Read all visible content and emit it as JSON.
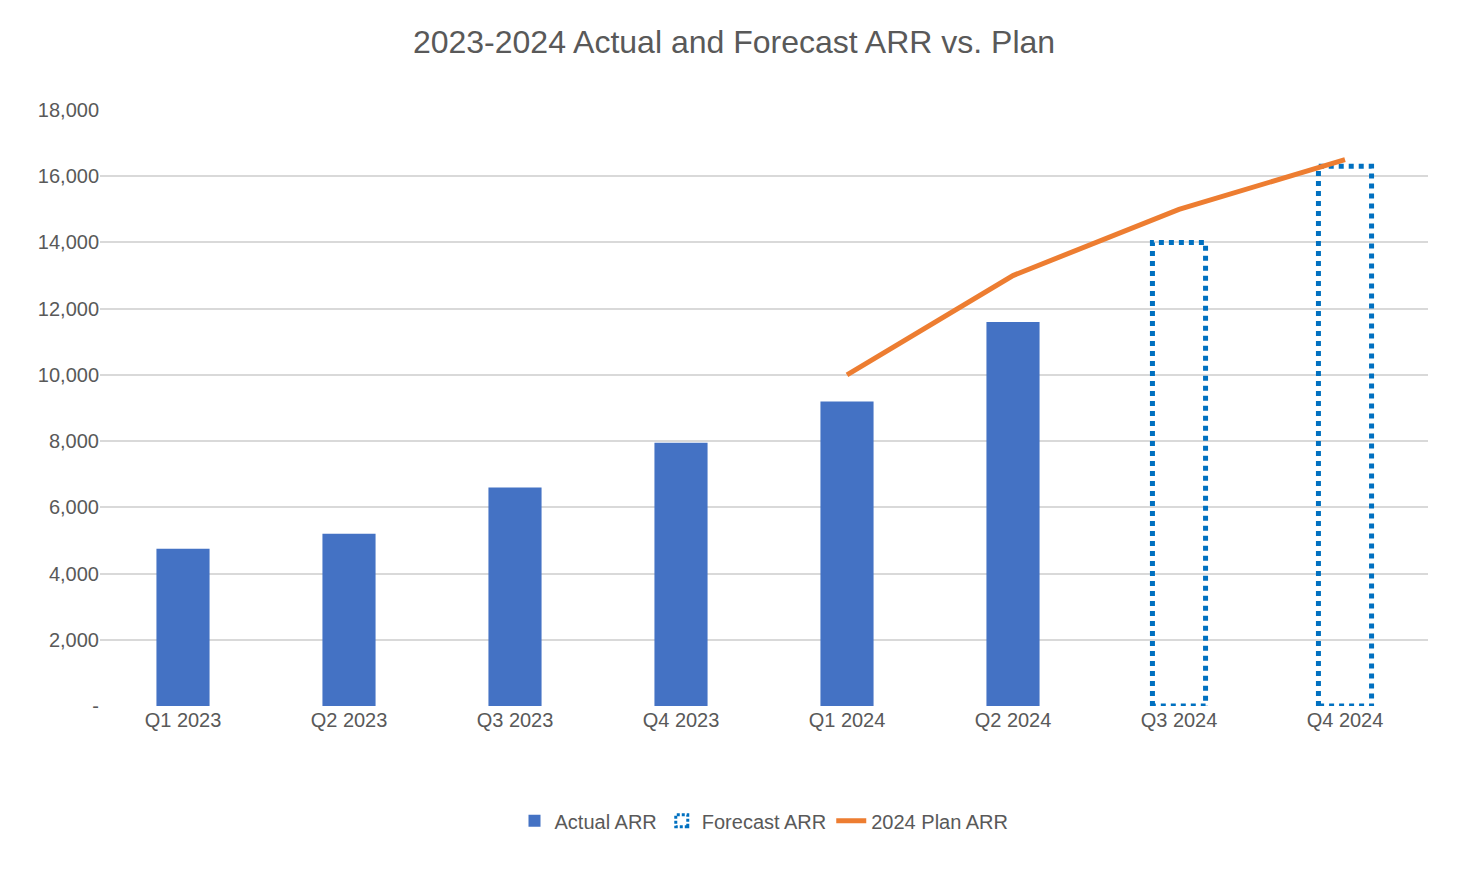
{
  "chart_data": {
    "type": "bar",
    "title": "2023-2024 Actual and Forecast ARR vs. Plan",
    "categories": [
      "Q1 2023",
      "Q2 2023",
      "Q3 2023",
      "Q4 2023",
      "Q1 2024",
      "Q2 2024",
      "Q3 2024",
      "Q4 2024"
    ],
    "series": [
      {
        "name": "Actual ARR",
        "type": "bar",
        "color": "#4472c4",
        "values": [
          4750,
          5200,
          6600,
          7950,
          9200,
          11600,
          null,
          null
        ]
      },
      {
        "name": "Forecast ARR",
        "type": "bar",
        "color": "#0070c0",
        "line_style": "dotted",
        "values": [
          null,
          null,
          null,
          null,
          null,
          null,
          14000,
          16300
        ]
      },
      {
        "name": "2024 Plan ARR",
        "type": "line",
        "color": "#ed7d31",
        "values": [
          null,
          null,
          null,
          null,
          10000,
          13000,
          15000,
          16500
        ]
      }
    ],
    "ylim": [
      0,
      18000
    ],
    "yticks": [
      {
        "value": 0,
        "label": "-"
      },
      {
        "value": 2000,
        "label": "2,000"
      },
      {
        "value": 4000,
        "label": "4,000"
      },
      {
        "value": 6000,
        "label": "6,000"
      },
      {
        "value": 8000,
        "label": "8,000"
      },
      {
        "value": 10000,
        "label": "10,000"
      },
      {
        "value": 12000,
        "label": "12,000"
      },
      {
        "value": 14000,
        "label": "14,000"
      },
      {
        "value": 16000,
        "label": "16,000"
      },
      {
        "value": 18000,
        "label": "18,000"
      }
    ],
    "grid": true,
    "legend": "bottom"
  }
}
